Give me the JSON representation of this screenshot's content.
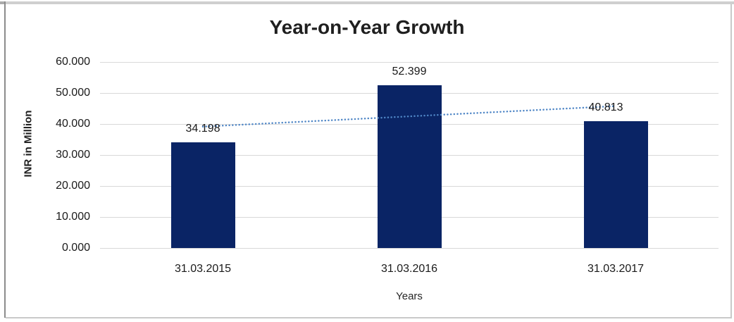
{
  "chart_data": {
    "type": "bar",
    "title": "Year-on-Year Growth",
    "xlabel": "Years",
    "ylabel": "INR in Million",
    "categories": [
      "31.03.2015",
      "31.03.2016",
      "31.03.2017"
    ],
    "values": [
      34.198,
      52.399,
      40.813
    ],
    "data_labels": [
      "34.198",
      "52.399",
      "40.813"
    ],
    "ytick_labels": [
      "0.000",
      "10.000",
      "20.000",
      "30.000",
      "40.000",
      "50.000",
      "60.000"
    ],
    "ytick_step": 10,
    "ylim": [
      0,
      60
    ],
    "grid": true,
    "legend": "none",
    "trendline": {
      "type": "linear",
      "style": "dotted"
    },
    "colors": {
      "bar": "#0a2465",
      "trendline": "#4f86c6",
      "gridline": "#d9d9d9",
      "text": "#1a1a1a",
      "title": "#1f1f1f"
    }
  }
}
